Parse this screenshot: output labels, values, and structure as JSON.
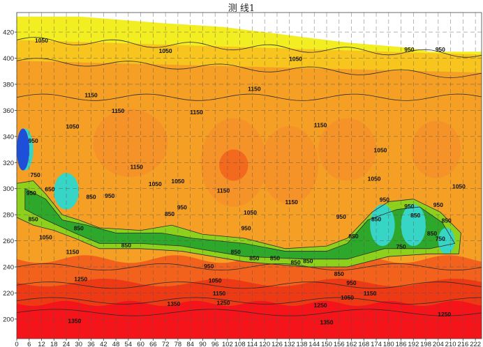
{
  "chart_data": {
    "type": "heatmap",
    "title": "测 线1",
    "xlabel": "",
    "ylabel": "",
    "xlim": [
      0,
      225
    ],
    "ylim": [
      185,
      435
    ],
    "x_ticks": [
      0,
      6,
      12,
      18,
      24,
      30,
      36,
      42,
      48,
      54,
      60,
      66,
      72,
      78,
      84,
      90,
      96,
      102,
      108,
      114,
      120,
      126,
      132,
      138,
      144,
      150,
      156,
      162,
      168,
      174,
      180,
      186,
      192,
      198,
      204,
      210,
      216,
      222
    ],
    "y_ticks": [
      200,
      220,
      240,
      260,
      280,
      300,
      320,
      340,
      360,
      380,
      400,
      420
    ],
    "grid": true,
    "colormap": [
      "#1e4fd8",
      "#35c8f0",
      "#37d5c6",
      "#2ea82a",
      "#8ed11c",
      "#f3ee22",
      "#f8c41e",
      "#f5a025",
      "#f5902a",
      "#f2621c",
      "#ee3a14",
      "#f4141a"
    ],
    "top_surface": {
      "x": [
        0,
        30,
        70,
        100,
        120,
        140,
        160,
        175,
        190,
        200,
        225
      ],
      "y": [
        432,
        432,
        427,
        424,
        420,
        416,
        412,
        410,
        408,
        405,
        405
      ]
    },
    "contour_labels": [
      {
        "text": "1050",
        "x": 12,
        "y": 412
      },
      {
        "text": "1050",
        "x": 72,
        "y": 404
      },
      {
        "text": "1050",
        "x": 135,
        "y": 398
      },
      {
        "text": "950",
        "x": 190,
        "y": 405
      },
      {
        "text": "950",
        "x": 205,
        "y": 405
      },
      {
        "text": "1150",
        "x": 36,
        "y": 370
      },
      {
        "text": "1150",
        "x": 49,
        "y": 358
      },
      {
        "text": "1150",
        "x": 115,
        "y": 375
      },
      {
        "text": "1150",
        "x": 87,
        "y": 357
      },
      {
        "text": "1150",
        "x": 147,
        "y": 347
      },
      {
        "text": "1050",
        "x": 27,
        "y": 346
      },
      {
        "text": "950",
        "x": 8,
        "y": 335
      },
      {
        "text": "1150",
        "x": 58,
        "y": 315
      },
      {
        "text": "1050",
        "x": 67,
        "y": 302
      },
      {
        "text": "1050",
        "x": 78,
        "y": 304
      },
      {
        "text": "1150",
        "x": 100,
        "y": 297
      },
      {
        "text": "1150",
        "x": 133,
        "y": 288
      },
      {
        "text": "1050",
        "x": 176,
        "y": 328
      },
      {
        "text": "1050",
        "x": 173,
        "y": 306
      },
      {
        "text": "1050",
        "x": 214,
        "y": 300
      },
      {
        "text": "750",
        "x": 9,
        "y": 309
      },
      {
        "text": "650",
        "x": 16,
        "y": 298
      },
      {
        "text": "950",
        "x": 7,
        "y": 295
      },
      {
        "text": "850",
        "x": 36,
        "y": 292
      },
      {
        "text": "850",
        "x": 8,
        "y": 275
      },
      {
        "text": "850",
        "x": 30,
        "y": 268
      },
      {
        "text": "950",
        "x": 45,
        "y": 293
      },
      {
        "text": "950",
        "x": 80,
        "y": 284
      },
      {
        "text": "850",
        "x": 74,
        "y": 279
      },
      {
        "text": "1050",
        "x": 113,
        "y": 280
      },
      {
        "text": "950",
        "x": 111,
        "y": 268
      },
      {
        "text": "950",
        "x": 157,
        "y": 277
      },
      {
        "text": "850",
        "x": 163,
        "y": 262
      },
      {
        "text": "850",
        "x": 174,
        "y": 275
      },
      {
        "text": "950",
        "x": 178,
        "y": 290
      },
      {
        "text": "950",
        "x": 190,
        "y": 285
      },
      {
        "text": "950",
        "x": 204,
        "y": 286
      },
      {
        "text": "850",
        "x": 208,
        "y": 274
      },
      {
        "text": "850",
        "x": 193,
        "y": 278
      },
      {
        "text": "850",
        "x": 201,
        "y": 264
      },
      {
        "text": "750",
        "x": 205,
        "y": 260
      },
      {
        "text": "750",
        "x": 186,
        "y": 254
      },
      {
        "text": "1050",
        "x": 14,
        "y": 261
      },
      {
        "text": "850",
        "x": 53,
        "y": 255
      },
      {
        "text": "1150",
        "x": 27,
        "y": 250
      },
      {
        "text": "850",
        "x": 106,
        "y": 250
      },
      {
        "text": "850",
        "x": 115,
        "y": 245
      },
      {
        "text": "850",
        "x": 125,
        "y": 245
      },
      {
        "text": "850",
        "x": 135,
        "y": 242
      },
      {
        "text": "850",
        "x": 141,
        "y": 243
      },
      {
        "text": "850",
        "x": 156,
        "y": 233
      },
      {
        "text": "950",
        "x": 93,
        "y": 239
      },
      {
        "text": "1050",
        "x": 96,
        "y": 228
      },
      {
        "text": "1150",
        "x": 98,
        "y": 218
      },
      {
        "text": "1250",
        "x": 100,
        "y": 211
      },
      {
        "text": "1150",
        "x": 171,
        "y": 218
      },
      {
        "text": "950",
        "x": 162,
        "y": 226
      },
      {
        "text": "1050",
        "x": 160,
        "y": 215
      },
      {
        "text": "1250",
        "x": 31,
        "y": 229
      },
      {
        "text": "1350",
        "x": 76,
        "y": 210
      },
      {
        "text": "1350",
        "x": 28,
        "y": 197
      },
      {
        "text": "1250",
        "x": 147,
        "y": 209
      },
      {
        "text": "1350",
        "x": 150,
        "y": 196
      },
      {
        "text": "1250",
        "x": 207,
        "y": 202
      }
    ]
  }
}
